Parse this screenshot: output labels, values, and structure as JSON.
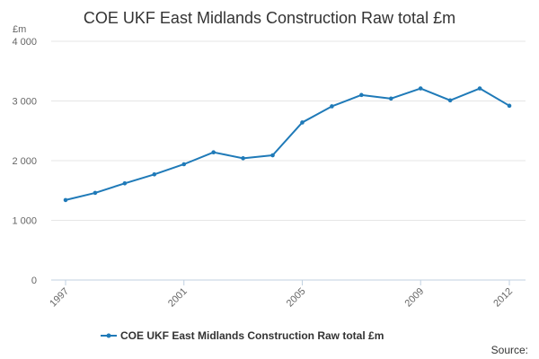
{
  "chart_data": {
    "type": "line",
    "title": "COE UKF East Midlands Construction Raw total £m",
    "ylabel": "£m",
    "xlabel": "",
    "x": [
      1997,
      1998,
      1999,
      2000,
      2001,
      2002,
      2003,
      2004,
      2005,
      2006,
      2007,
      2008,
      2009,
      2010,
      2011,
      2012
    ],
    "xtick_labels": [
      "1997",
      "2001",
      "2005",
      "2009",
      "2012"
    ],
    "xtick_values": [
      1997,
      2001,
      2005,
      2009,
      2012
    ],
    "ytick_labels": [
      "0",
      "1 000",
      "2 000",
      "3 000",
      "4 000"
    ],
    "ytick_values": [
      0,
      1000,
      2000,
      3000,
      4000
    ],
    "ylim": [
      0,
      4000
    ],
    "grid": true,
    "series": [
      {
        "name": "COE UKF East Midlands Construction Raw total £m",
        "color": "#1f7ab8",
        "values": [
          1340,
          1460,
          1620,
          1770,
          1940,
          2140,
          2040,
          2090,
          2640,
          2910,
          3100,
          3040,
          3210,
          3010,
          3210,
          2920
        ]
      }
    ],
    "legend_position": "bottom-center",
    "source_label": "Source:"
  }
}
